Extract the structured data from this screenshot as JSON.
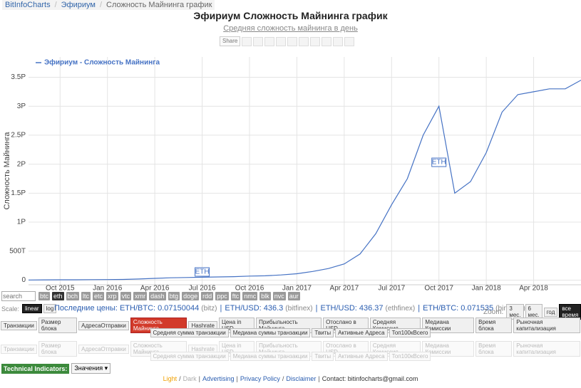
{
  "breadcrumb": {
    "items": [
      "BitInfoCharts",
      "Эфириум",
      "Сложность Майнинга график"
    ],
    "separator": "/"
  },
  "share_label": "Share",
  "chart_data": {
    "type": "line",
    "title": "Эфириум Сложность Майнинга график",
    "subtitle": "Средняя сложность майнинга в день",
    "y_label": "Сложность Майнинга",
    "x": [
      "2015-08",
      "2015-09",
      "2015-10",
      "2015-11",
      "2015-12",
      "2016-01",
      "2016-02",
      "2016-03",
      "2016-04",
      "2016-05",
      "2016-06",
      "2016-07",
      "2016-08",
      "2016-09",
      "2016-10",
      "2016-11",
      "2016-12",
      "2017-01",
      "2017-02",
      "2017-03",
      "2017-04",
      "2017-05",
      "2017-06",
      "2017-07",
      "2017-08",
      "2017-09",
      "2017-10",
      "2017-11",
      "2017-12",
      "2018-01",
      "2018-02",
      "2018-03",
      "2018-04",
      "2018-05",
      "2018-06",
      "2018-07"
    ],
    "series": [
      {
        "name": "Эфириум - Сложность Майнинга",
        "color": "#4572c4",
        "values": [
          0.002,
          0.005,
          0.006,
          0.006,
          0.008,
          0.01,
          0.012,
          0.02,
          0.03,
          0.04,
          0.045,
          0.05,
          0.055,
          0.06,
          0.07,
          0.075,
          0.09,
          0.11,
          0.15,
          0.2,
          0.28,
          0.45,
          0.8,
          1.3,
          1.75,
          2.5,
          3.0,
          1.5,
          1.7,
          2.2,
          2.9,
          3.2,
          3.25,
          3.3,
          3.3,
          3.45
        ]
      }
    ],
    "xlim": [
      "2015-08",
      "2018-07"
    ],
    "xticks": [
      {
        "value": "2015-10",
        "label": "Oct 2015"
      },
      {
        "value": "2016-01",
        "label": "Jan 2016"
      },
      {
        "value": "2016-04",
        "label": "Apr 2016"
      },
      {
        "value": "2016-07",
        "label": "Jul 2016"
      },
      {
        "value": "2016-10",
        "label": "Oct 2016"
      },
      {
        "value": "2017-01",
        "label": "Jan 2017"
      },
      {
        "value": "2017-04",
        "label": "Apr 2017"
      },
      {
        "value": "2017-07",
        "label": "Jul 2017"
      },
      {
        "value": "2017-10",
        "label": "Oct 2017"
      },
      {
        "value": "2018-01",
        "label": "Jan 2018"
      },
      {
        "value": "2018-04",
        "label": "Apr 2018"
      }
    ],
    "ylim": [
      -0.08,
      3.85
    ],
    "yticks": [
      0,
      {
        "value": 0.5,
        "label": "500T"
      },
      {
        "value": 1,
        "label": "1P"
      },
      {
        "value": 1.5,
        "label": "1.5P"
      },
      {
        "value": 2,
        "label": "2P"
      },
      {
        "value": 2.5,
        "label": "2.5P"
      },
      {
        "value": 3,
        "label": "3P"
      },
      {
        "value": 3.5,
        "label": "3.5P"
      }
    ],
    "grid": true,
    "annotations": [
      {
        "text": "ETH",
        "x": "2016-07"
      },
      {
        "text": "ETH",
        "x": "2017-10"
      }
    ]
  },
  "search_placeholder": "search",
  "coins": [
    {
      "text": "btc"
    },
    {
      "text": "eth",
      "active": true
    },
    {
      "text": "bch"
    },
    {
      "text": "ltc"
    },
    {
      "text": "etc"
    },
    {
      "text": "xrp"
    },
    {
      "text": "vtc"
    },
    {
      "text": "xmr"
    },
    {
      "text": "dash"
    },
    {
      "text": "btg"
    },
    {
      "text": "doge"
    },
    {
      "text": "rdd"
    },
    {
      "text": "ppc"
    },
    {
      "text": "ftc"
    },
    {
      "text": "nmc"
    },
    {
      "text": "blk"
    },
    {
      "text": "nvc"
    },
    {
      "text": "aur"
    }
  ],
  "scale_label": "Scale:",
  "scale": [
    {
      "text": "linear",
      "active": true
    },
    {
      "text": "log"
    }
  ],
  "prices_label": "Последние цены:",
  "prices": [
    {
      "pair": "ETH/BTC: 0.07150044",
      "source": "(bitz)"
    },
    {
      "pair": "ETH/USD: 436.3",
      "source": "(bitfinex)"
    },
    {
      "pair": "ETH/USD: 436.37",
      "source": "(ethfinex)"
    },
    {
      "pair": "ETH/BTC: 0.071535",
      "source": "(binance)"
    }
  ],
  "prices_separator": "|",
  "zoom_label": "Zoom:",
  "zoom": [
    {
      "text": "3 мес."
    },
    {
      "text": "6 мес."
    },
    {
      "text": "год"
    },
    {
      "text": "все время",
      "active": true
    }
  ],
  "tabs": [
    [
      {
        "text": "Транзакции"
      },
      {
        "text": "Размер блока"
      },
      {
        "text": "АдресаОтправки"
      },
      {
        "text": "Сложность Майнинга",
        "active": true
      },
      {
        "text": "Hashrate"
      },
      {
        "text": "Цена in USD"
      },
      {
        "text": "Прибыльность Майнинга"
      },
      {
        "text": "Отослано в USD"
      },
      {
        "text": "Средняя Комиссия"
      },
      {
        "text": "Медиана Комиссии"
      },
      {
        "text": "Время блока"
      },
      {
        "text": "Рыночная капитализация"
      }
    ],
    [
      {
        "text": "Средняя сумма транзакции"
      },
      {
        "text": "Медиана суммы транзакции"
      },
      {
        "text": "Твиты"
      },
      {
        "text": "Активные Адреса"
      },
      {
        "text": "Топ100кВсего"
      }
    ]
  ],
  "technical_indicators": "Technical Indicators:",
  "indicator_select": "Значения ▾",
  "footer": {
    "links": [
      "Light",
      "Dark",
      "Advertising",
      "Privacy Policy",
      "Disclaimer",
      "Contact: bitinfocharts@gmail.com"
    ],
    "separators": [
      "/",
      "|",
      "|",
      "/",
      "|"
    ]
  }
}
